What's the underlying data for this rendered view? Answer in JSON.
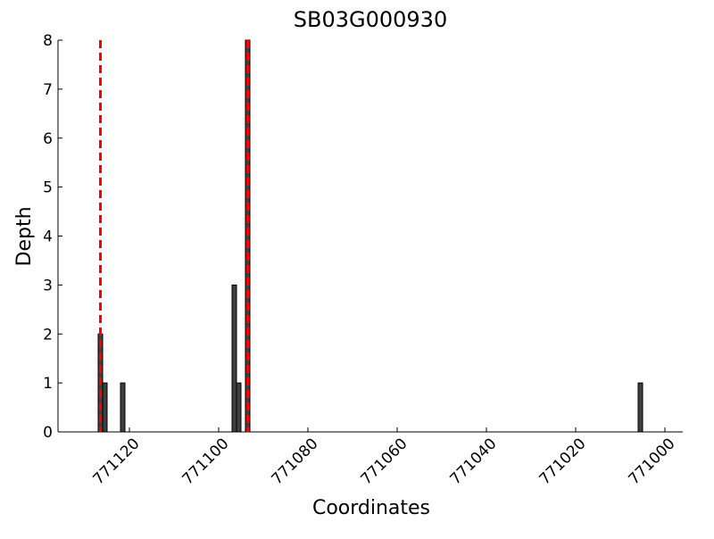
{
  "chart_data": {
    "type": "bar",
    "title": "SB03G000930",
    "xlabel": "Coordinates",
    "ylabel": "Depth",
    "x": [
      771126.5,
      771125.5,
      771121.5,
      771096.5,
      771095.5,
      771093.5,
      771005.5
    ],
    "values": [
      2,
      1,
      1,
      3,
      1,
      8,
      1
    ],
    "color": "#404040",
    "xlim": [
      771136,
      770996
    ],
    "xticks": [
      771120,
      771100,
      771080,
      771060,
      771040,
      771020,
      771000
    ],
    "ylim": [
      0,
      8
    ],
    "yticks": [
      0,
      1,
      2,
      3,
      4,
      5,
      6,
      7,
      8
    ],
    "vlines": [
      771126.5,
      771093.5
    ],
    "vline_color": "#ff0000"
  }
}
